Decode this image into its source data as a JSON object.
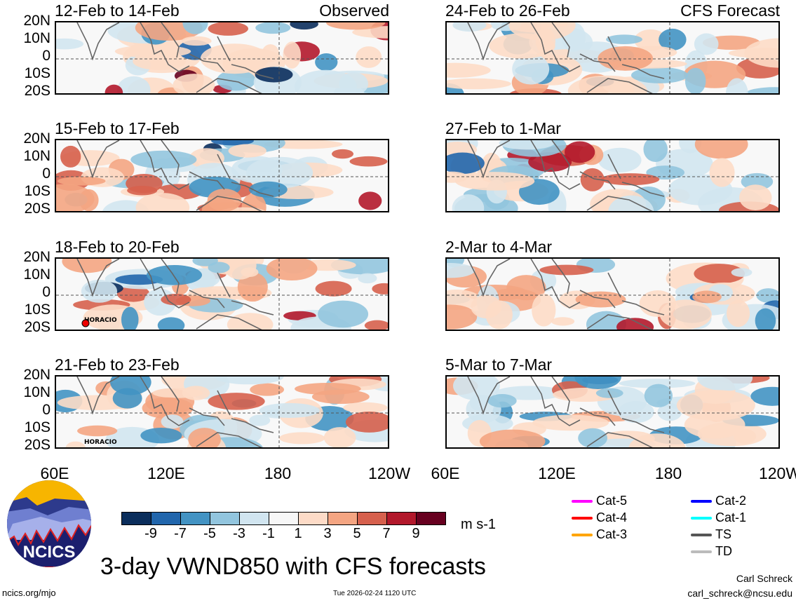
{
  "panels": [
    {
      "title": "12-Feb to 14-Feb",
      "label": "Observed",
      "seed": 1
    },
    {
      "title": "24-Feb to 26-Feb",
      "label": "CFS Forecast",
      "seed": 5
    },
    {
      "title": "15-Feb to 17-Feb",
      "label": "",
      "seed": 2
    },
    {
      "title": "27-Feb to 1-Mar",
      "label": "",
      "seed": 6
    },
    {
      "title": "18-Feb to 20-Feb",
      "label": "",
      "seed": 3,
      "storm": "HORACIO"
    },
    {
      "title": "2-Mar to 4-Mar",
      "label": "",
      "seed": 7
    },
    {
      "title": "21-Feb to 23-Feb",
      "label": "",
      "seed": 4,
      "storm": "HORACIO"
    },
    {
      "title": "5-Mar to 7-Mar",
      "label": "",
      "seed": 8
    }
  ],
  "y_ticks": [
    "20N",
    "10N",
    "0",
    "10S",
    "20S"
  ],
  "x_ticks_left": [
    "60E",
    "120E",
    "180",
    "120W"
  ],
  "x_ticks_right": [
    "60E",
    "120E",
    "180",
    "120W"
  ],
  "colorbar": {
    "colors": [
      "#0b2e5c",
      "#2166ac",
      "#4393c3",
      "#92c5de",
      "#d1e5f0",
      "#f7f7f7",
      "#fddbc7",
      "#f4a582",
      "#d6604d",
      "#b2182b",
      "#67001f"
    ],
    "labels": [
      "-9",
      "-7",
      "-5",
      "-3",
      "-1",
      "1",
      "3",
      "5",
      "7",
      "9"
    ],
    "units": "m s-1"
  },
  "legend": [
    {
      "label": "Cat-5",
      "color": "#ff00ff"
    },
    {
      "label": "Cat-4",
      "color": "#ff0000"
    },
    {
      "label": "Cat-3",
      "color": "#ffa500"
    },
    {
      "label": "Cat-2",
      "color": "#0000ff"
    },
    {
      "label": "Cat-1",
      "color": "#00ffff"
    },
    {
      "label": "TS",
      "color": "#555555"
    },
    {
      "label": "TD",
      "color": "#bbbbbb"
    }
  ],
  "logo_text": "NCICS",
  "main_title": "3-day VWND850 with CFS forecasts",
  "footer": {
    "url": "ncics.org/mjo",
    "timestamp": "Tue 2026-02-24 1120 UTC",
    "author": "Carl Schreck",
    "email": "carl_schreck@ncsu.edu"
  }
}
